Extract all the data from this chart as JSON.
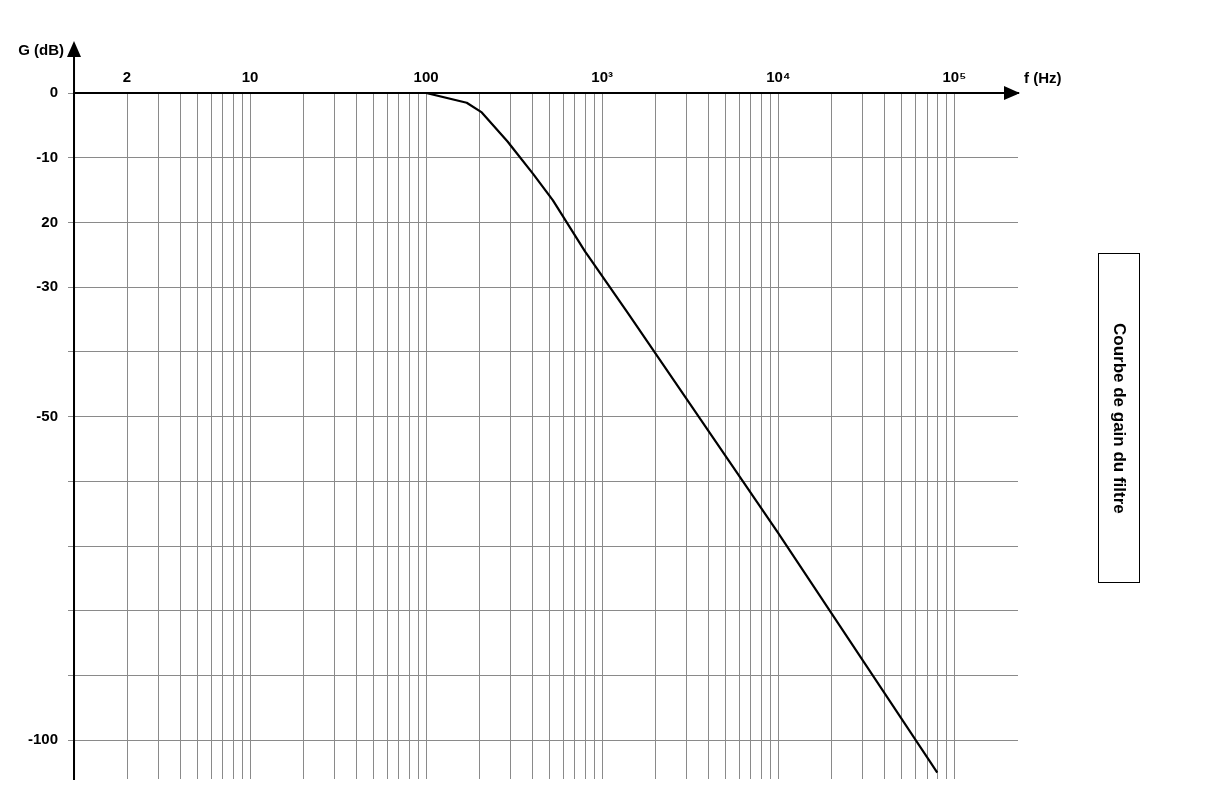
{
  "chart_data": {
    "type": "line",
    "xlabel": "f (Hz)",
    "ylabel": "G (dB)",
    "annotations": [
      "Courbe de gain du filtre"
    ],
    "log": "x",
    "grid": true,
    "marker": "none",
    "line_style": "solid",
    "xlim": [
      1,
      230000
    ],
    "ylim": [
      -106,
      0
    ],
    "xticks": [
      {
        "value": 1,
        "label": null
      },
      2,
      {
        "value": 3,
        "label": null
      },
      {
        "value": 4,
        "label": null
      },
      {
        "value": 5,
        "label": null
      },
      {
        "value": 6,
        "label": null
      },
      {
        "value": 7,
        "label": null
      },
      {
        "value": 8,
        "label": null
      },
      {
        "value": 9,
        "label": null
      },
      10,
      {
        "value": 20,
        "label": null
      },
      {
        "value": 30,
        "label": null
      },
      {
        "value": 40,
        "label": null
      },
      {
        "value": 50,
        "label": null
      },
      {
        "value": 60,
        "label": null
      },
      {
        "value": 70,
        "label": null
      },
      {
        "value": 80,
        "label": null
      },
      {
        "value": 90,
        "label": null
      },
      100,
      {
        "value": 200,
        "label": null
      },
      {
        "value": 300,
        "label": null
      },
      {
        "value": 400,
        "label": null
      },
      {
        "value": 500,
        "label": null
      },
      {
        "value": 600,
        "label": null
      },
      {
        "value": 700,
        "label": null
      },
      {
        "value": 800,
        "label": null
      },
      {
        "value": 900,
        "label": null
      },
      {
        "value": 1000,
        "label": "10³"
      },
      {
        "value": 2000,
        "label": null
      },
      {
        "value": 3000,
        "label": null
      },
      {
        "value": 4000,
        "label": null
      },
      {
        "value": 5000,
        "label": null
      },
      {
        "value": 6000,
        "label": null
      },
      {
        "value": 7000,
        "label": null
      },
      {
        "value": 8000,
        "label": null
      },
      {
        "value": 9000,
        "label": null
      },
      {
        "value": 10000,
        "label": "10⁴"
      },
      {
        "value": 20000,
        "label": null
      },
      {
        "value": 30000,
        "label": null
      },
      {
        "value": 40000,
        "label": null
      },
      {
        "value": 50000,
        "label": null
      },
      {
        "value": 60000,
        "label": null
      },
      {
        "value": 70000,
        "label": null
      },
      {
        "value": 80000,
        "label": null
      },
      {
        "value": 90000,
        "label": null
      },
      {
        "value": 100000,
        "label": "10⁵"
      }
    ],
    "yticks": [
      0,
      -10,
      {
        "value": -20,
        "label": "20"
      },
      -30,
      {
        "value": -40,
        "label": null
      },
      -50,
      {
        "value": -60,
        "label": null
      },
      {
        "value": -70,
        "label": null
      },
      {
        "value": -80,
        "label": null
      },
      {
        "value": -90,
        "label": null
      },
      -100
    ],
    "x": [
      1,
      10,
      100,
      170,
      207,
      290,
      405,
      525,
      800,
      1400,
      10000,
      80000
    ],
    "series": [
      {
        "color": "#000000",
        "values": [
          0,
          0,
          0,
          -1.5,
          -3,
          -7.5,
          -12.5,
          -16.6,
          -24.5,
          -34,
          -68,
          -105
        ]
      }
    ]
  }
}
